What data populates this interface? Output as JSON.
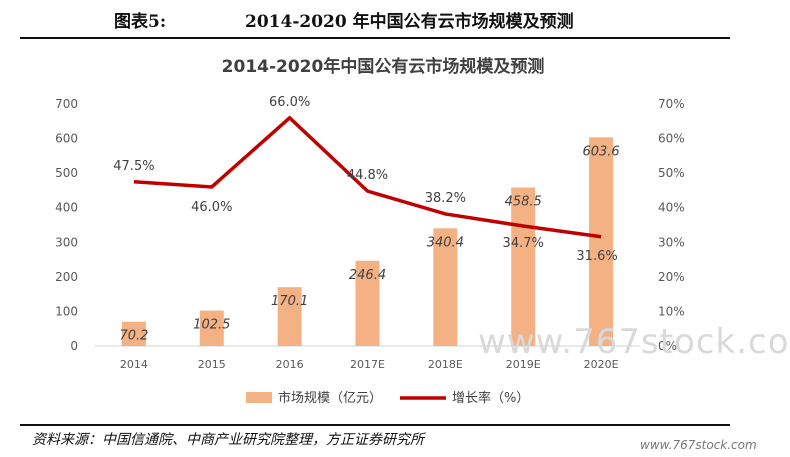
{
  "figure": {
    "label": "图表5:",
    "title": "2014-2020 年中国公有云市场规模及预测"
  },
  "source_note": "资料来源：中国信通院、中商产业研究院整理，方正证券研究所",
  "watermark": {
    "small": "www.767stock.com",
    "large": "www.767stock.co"
  },
  "colors": {
    "bar": "#F4B183",
    "line": "#C00000",
    "axis_text": "#595959",
    "axis_line": "#d0d0d0"
  },
  "chart_data": {
    "type": "bar",
    "title": "2014-2020年中国公有云市场规模及预测",
    "categories": [
      "2014",
      "2015",
      "2016",
      "2017E",
      "2018E",
      "2019E",
      "2020E"
    ],
    "series": [
      {
        "name": "市场规模（亿元）",
        "type": "bar",
        "axis": "left",
        "values": [
          70.2,
          102.5,
          170.1,
          246.4,
          340.4,
          458.5,
          603.6
        ],
        "labels": [
          "70.2",
          "102.5",
          "170.1",
          "246.4",
          "340.4",
          "458.5",
          "603.6"
        ]
      },
      {
        "name": "增长率（%）",
        "type": "line",
        "axis": "right",
        "values": [
          47.5,
          46.0,
          66.0,
          44.8,
          38.2,
          34.7,
          31.6
        ],
        "labels": [
          "47.5%",
          "46.0%",
          "66.0%",
          "44.8%",
          "38.2%",
          "34.7%",
          "31.6%"
        ]
      }
    ],
    "y_left": {
      "ylim": [
        0,
        700
      ],
      "ticks": [
        "0",
        "100",
        "200",
        "300",
        "400",
        "500",
        "600",
        "700"
      ]
    },
    "y_right": {
      "ylim": [
        0,
        70
      ],
      "ticks": [
        "0%",
        "10%",
        "20%",
        "30%",
        "40%",
        "50%",
        "60%",
        "70%"
      ]
    },
    "legend_position": "bottom",
    "grid": false
  }
}
